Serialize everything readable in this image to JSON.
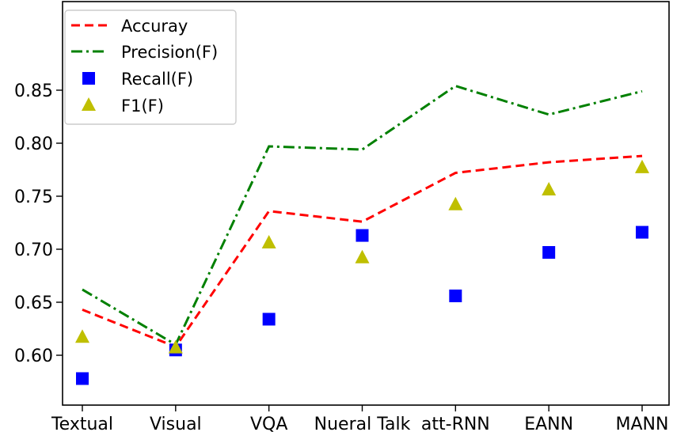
{
  "chart_data": {
    "type": "line",
    "title": "",
    "xlabel": "",
    "ylabel": "",
    "categories": [
      "Textual",
      "Visual",
      "VQA",
      "Nueral Talk",
      "att-RNN",
      "EANN",
      "MANN"
    ],
    "ylim": [
      0.575,
      0.86
    ],
    "yticks": [
      0.6,
      0.65,
      0.7,
      0.75,
      0.8,
      0.85
    ],
    "ytick_labels": [
      "0.60",
      "0.65",
      "0.70",
      "0.75",
      "0.80",
      "0.85"
    ],
    "grid": false,
    "legend_position": "top-left",
    "series": [
      {
        "name": "Accuray",
        "style": "dashed-line",
        "color": "#ff0000",
        "values": [
          0.643,
          0.608,
          0.736,
          0.726,
          0.772,
          0.782,
          0.788
        ]
      },
      {
        "name": "Precision(F)",
        "style": "dashdot-line",
        "color": "#008000",
        "values": [
          0.662,
          0.61,
          0.797,
          0.794,
          0.854,
          0.827,
          0.849
        ]
      },
      {
        "name": "Recall(F)",
        "style": "square-marker",
        "color": "#0000ff",
        "values": [
          0.578,
          0.605,
          0.634,
          0.713,
          0.656,
          0.697,
          0.716
        ]
      },
      {
        "name": "F1(F)",
        "style": "triangle-marker",
        "color": "#bfbf00",
        "values": [
          0.617,
          0.607,
          0.706,
          0.692,
          0.742,
          0.756,
          0.777
        ]
      }
    ]
  }
}
